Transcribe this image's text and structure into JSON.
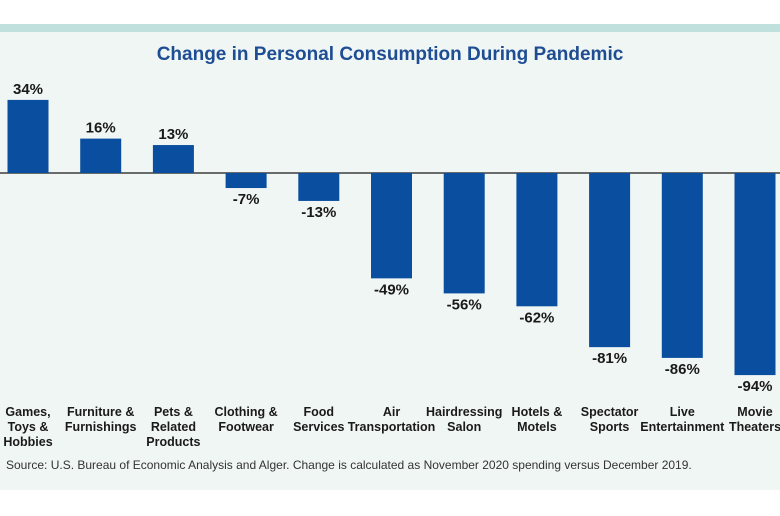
{
  "chart_data": {
    "type": "bar",
    "title": "Change in Personal Consumption During Pandemic",
    "categories": [
      [
        "Games,",
        "Toys &",
        "Hobbies"
      ],
      [
        "Furniture &",
        "Furnishings"
      ],
      [
        "Pets &",
        "Related",
        "Products"
      ],
      [
        "Clothing &",
        "Footwear"
      ],
      [
        "Food",
        "Services"
      ],
      [
        "Air",
        "Transportation"
      ],
      [
        "Hairdressing",
        "Salon"
      ],
      [
        "Hotels &",
        "Motels"
      ],
      [
        "Spectator",
        "Sports"
      ],
      [
        "Live",
        "Entertainment"
      ],
      [
        "Movie",
        "Theaters"
      ]
    ],
    "values": [
      34,
      16,
      13,
      -7,
      -13,
      -49,
      -56,
      -62,
      -81,
      -86,
      -94
    ],
    "value_labels": [
      "34%",
      "16%",
      "13%",
      "-7%",
      "-13%",
      "-49%",
      "-56%",
      "-62%",
      "-81%",
      "-86%",
      "-94%"
    ],
    "ylim": [
      -94,
      34
    ],
    "grid": false,
    "bar_color": "#0a4ea0"
  },
  "source": "Source: U.S. Bureau of Economic Analysis and Alger. Change is calculated as November 2020 spending versus December 2019."
}
